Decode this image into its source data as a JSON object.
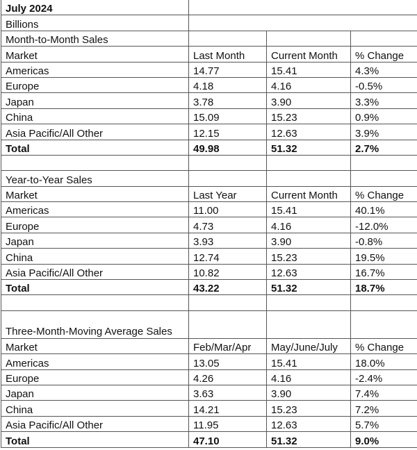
{
  "title": "July 2024",
  "units": "Billions",
  "sections": [
    {
      "title": "Month-to-Month Sales",
      "headers": [
        "Market",
        "Last Month",
        "Current Month",
        "% Change"
      ],
      "rows": [
        [
          "Americas",
          "14.77",
          "15.41",
          "4.3%"
        ],
        [
          "Europe",
          "4.18",
          "4.16",
          "-0.5%"
        ],
        [
          "Japan",
          "3.78",
          "3.90",
          "3.3%"
        ],
        [
          "China",
          "15.09",
          "15.23",
          "0.9%"
        ],
        [
          "Asia Pacific/All Other",
          "12.15",
          "12.63",
          "3.9%"
        ]
      ],
      "total": [
        "Total",
        "49.98",
        "51.32",
        "2.7%"
      ]
    },
    {
      "title": "Year-to-Year Sales",
      "headers": [
        "Market",
        "Last Year",
        "Current Month",
        "% Change"
      ],
      "rows": [
        [
          "Americas",
          "11.00",
          "15.41",
          "40.1%"
        ],
        [
          "Europe",
          "4.73",
          "4.16",
          "-12.0%"
        ],
        [
          "Japan",
          "3.93",
          "3.90",
          "-0.8%"
        ],
        [
          "China",
          "12.74",
          "15.23",
          "19.5%"
        ],
        [
          "Asia Pacific/All Other",
          "10.82",
          "12.63",
          "16.7%"
        ]
      ],
      "total": [
        "Total",
        "43.22",
        "51.32",
        "18.7%"
      ]
    },
    {
      "title": "Three-Month-Moving Average Sales",
      "headers": [
        "Market",
        "Feb/Mar/Apr",
        "May/June/July",
        "% Change"
      ],
      "rows": [
        [
          "Americas",
          "13.05",
          "15.41",
          "18.0%"
        ],
        [
          "Europe",
          "4.26",
          "4.16",
          "-2.4%"
        ],
        [
          "Japan",
          "3.63",
          "3.90",
          "7.4%"
        ],
        [
          "China",
          "14.21",
          "15.23",
          "7.2%"
        ],
        [
          "Asia Pacific/All Other",
          "11.95",
          "12.63",
          "5.7%"
        ]
      ],
      "total": [
        "Total",
        "47.10",
        "51.32",
        "9.0%"
      ]
    }
  ]
}
